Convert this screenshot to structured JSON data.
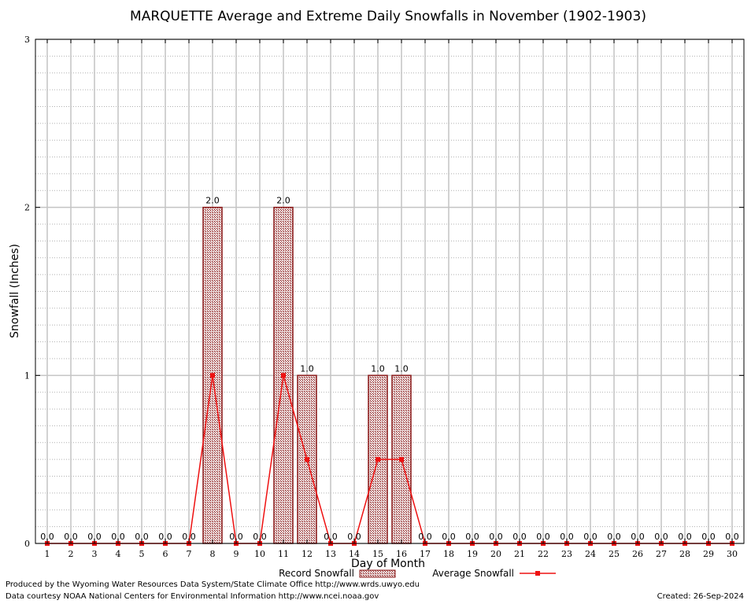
{
  "chart_data": {
    "type": "bar",
    "title": "MARQUETTE Average and Extreme Daily Snowfalls in November (1902-1903)",
    "xlabel": "Day of Month",
    "ylabel": "Snowfall (Inches)",
    "ylim": [
      0,
      3
    ],
    "yticks": [
      "0",
      "1",
      "2",
      "3"
    ],
    "grid": true,
    "categories": [
      "1",
      "2",
      "3",
      "4",
      "5",
      "6",
      "7",
      "8",
      "9",
      "10",
      "11",
      "12",
      "13",
      "14",
      "15",
      "16",
      "17",
      "18",
      "19",
      "20",
      "21",
      "22",
      "23",
      "24",
      "25",
      "26",
      "27",
      "28",
      "29",
      "30"
    ],
    "series": [
      {
        "name": "Record Snowfall",
        "type": "bar",
        "color": "#8b1a1a",
        "values": [
          0,
          0,
          0,
          0,
          0,
          0,
          0,
          2,
          0,
          0,
          2,
          1,
          0,
          0,
          1,
          1,
          0,
          0,
          0,
          0,
          0,
          0,
          0,
          0,
          0,
          0,
          0,
          0,
          0,
          0
        ],
        "labels": [
          "0.0",
          "0.0",
          "0.0",
          "0.0",
          "0.0",
          "0.0",
          "0.0",
          "2.0",
          "0.0",
          "0.0",
          "2.0",
          "1.0",
          "0.0",
          "0.0",
          "1.0",
          "1.0",
          "0.0",
          "0.0",
          "0.0",
          "0.0",
          "0.0",
          "0.0",
          "0.0",
          "0.0",
          "0.0",
          "0.0",
          "0.0",
          "0.0",
          "0.0",
          "0.0"
        ]
      },
      {
        "name": "Average Snowfall",
        "type": "line",
        "color": "#ee1111",
        "values": [
          0,
          0,
          0,
          0,
          0,
          0,
          0,
          1,
          0,
          0,
          1,
          0.5,
          0,
          0,
          0.5,
          0.5,
          0,
          0,
          0,
          0,
          0,
          0,
          0,
          0,
          0,
          0,
          0,
          0,
          0,
          0
        ]
      }
    ],
    "legend_position": "bottom"
  },
  "footer": {
    "produced_by": "Produced by the Wyoming Water Resources Data System/State Climate Office http://www.wrds.uwyo.edu",
    "courtesy": "Data courtesy NOAA National Centers for Environmental Information http://www.ncei.noaa.gov",
    "created": "Created: 26-Sep-2024"
  }
}
